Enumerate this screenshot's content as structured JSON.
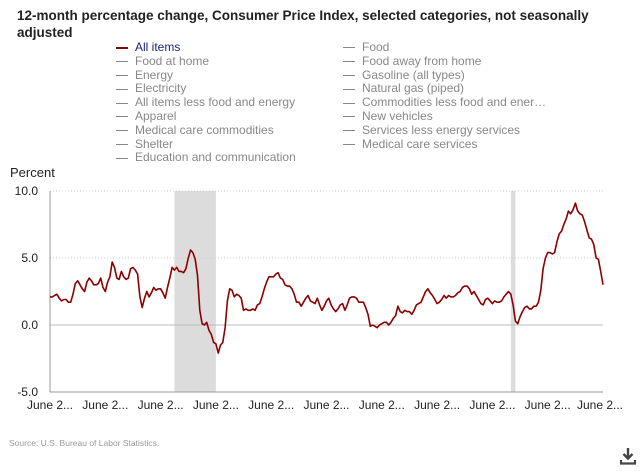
{
  "chart_data": {
    "type": "line",
    "title": "12-month percentage change, Consumer Price Index, selected categories, not seasonally adjusted",
    "ylabel": "Percent",
    "ylim": [
      -5,
      10
    ],
    "yticks": [
      "10.0",
      "5.0",
      "0.0",
      "-5.0"
    ],
    "xticks": [
      "June 2...",
      "June 2...",
      "June 2...",
      "June 2...",
      "June 2...",
      "June 2...",
      "June 2...",
      "June 2...",
      "June 2...",
      "June 2...",
      "June 2..."
    ],
    "grid": "horizontal dotted",
    "line_color": "#8b0000",
    "recession_color": "#dcdcdc",
    "recessions": [
      [
        "2007-12",
        "2009-06"
      ],
      [
        "2020-02",
        "2020-04"
      ]
    ],
    "legend": {
      "placement": "top",
      "items": [
        "All items",
        "Food",
        "Food at home",
        "Food away from home",
        "Energy",
        "Gasoline (all types)",
        "Electricity",
        "Natural gas (piped)",
        "All items less food and energy",
        "Commodities less food and ener…",
        "Apparel",
        "New vehicles",
        "Medical care commodities",
        "Services less energy services",
        "Shelter",
        "Medical care services",
        "Education and communication"
      ],
      "active": "All items"
    },
    "series": [
      {
        "name": "All items",
        "monthly_by_year": [
          {
            "year": 2003,
            "from_month": "June",
            "values": [
              2.1,
              2.1,
              2.2,
              2.3,
              2.0,
              1.8,
              1.9
            ]
          },
          {
            "year": 2004,
            "values": [
              1.9,
              1.7,
              1.7,
              2.3,
              3.1,
              3.3,
              3.0,
              2.7,
              2.5,
              3.2,
              3.5,
              3.3
            ]
          },
          {
            "year": 2005,
            "values": [
              3.0,
              3.0,
              3.1,
              3.5,
              2.8,
              2.5,
              3.2,
              3.6,
              4.7,
              4.3,
              3.5,
              3.4
            ]
          },
          {
            "year": 2006,
            "values": [
              4.0,
              3.6,
              3.4,
              3.5,
              4.2,
              4.3,
              4.1,
              3.8,
              2.1,
              1.3,
              2.0,
              2.5
            ]
          },
          {
            "year": 2007,
            "values": [
              2.1,
              2.4,
              2.8,
              2.6,
              2.7,
              2.7,
              2.4,
              2.0,
              2.8,
              3.5,
              4.3,
              4.1
            ]
          },
          {
            "year": 2008,
            "values": [
              4.3,
              4.0,
              4.0,
              3.9,
              4.2,
              5.0,
              5.6,
              5.4,
              4.9,
              3.7,
              1.1,
              0.1
            ]
          },
          {
            "year": 2009,
            "values": [
              0.0,
              0.2,
              -0.4,
              -0.7,
              -1.3,
              -1.4,
              -2.1,
              -1.5,
              -1.3,
              -0.2,
              1.8,
              2.7
            ]
          },
          {
            "year": 2010,
            "values": [
              2.6,
              2.1,
              2.3,
              2.2,
              2.0,
              1.1,
              1.2,
              1.1,
              1.1,
              1.2,
              1.1,
              1.5
            ]
          },
          {
            "year": 2011,
            "values": [
              1.6,
              2.1,
              2.7,
              3.2,
              3.6,
              3.6,
              3.6,
              3.8,
              3.9,
              3.5,
              3.4,
              3.0
            ]
          },
          {
            "year": 2012,
            "values": [
              2.9,
              2.9,
              2.7,
              2.3,
              1.7,
              1.7,
              1.4,
              1.7,
              2.0,
              2.2,
              1.8,
              1.7
            ]
          },
          {
            "year": 2013,
            "values": [
              1.6,
              2.0,
              1.5,
              1.1,
              1.4,
              1.8,
              2.0,
              1.5,
              1.2,
              1.0,
              1.2,
              1.5
            ]
          },
          {
            "year": 2014,
            "values": [
              1.6,
              1.1,
              1.5,
              2.0,
              2.1,
              2.1,
              2.0,
              1.7,
              1.7,
              1.7,
              1.3,
              0.8
            ]
          },
          {
            "year": 2015,
            "values": [
              -0.1,
              0.0,
              -0.1,
              -0.2,
              0.0,
              0.1,
              0.2,
              0.2,
              0.0,
              0.2,
              0.5,
              0.7
            ]
          },
          {
            "year": 2016,
            "values": [
              1.4,
              1.0,
              0.9,
              1.1,
              1.0,
              1.0,
              0.8,
              1.1,
              1.5,
              1.6,
              1.7,
              2.1
            ]
          },
          {
            "year": 2017,
            "values": [
              2.5,
              2.7,
              2.4,
              2.2,
              1.9,
              1.6,
              1.7,
              1.9,
              2.2,
              2.0,
              2.2,
              2.1
            ]
          },
          {
            "year": 2018,
            "values": [
              2.1,
              2.2,
              2.4,
              2.5,
              2.8,
              2.9,
              2.9,
              2.7,
              2.3,
              2.5,
              2.2,
              1.9
            ]
          },
          {
            "year": 2019,
            "values": [
              1.6,
              1.5,
              1.9,
              2.0,
              1.8,
              1.6,
              1.8,
              1.7,
              1.7,
              1.8,
              2.1,
              2.3
            ]
          },
          {
            "year": 2020,
            "values": [
              2.5,
              2.3,
              1.5,
              0.3,
              0.1,
              0.6,
              1.0,
              1.3,
              1.4,
              1.2,
              1.2,
              1.4
            ]
          },
          {
            "year": 2021,
            "values": [
              1.4,
              1.7,
              2.6,
              4.2,
              5.0,
              5.4,
              5.4,
              5.3,
              5.4,
              6.2,
              6.8,
              7.0
            ]
          },
          {
            "year": 2022,
            "values": [
              7.5,
              7.9,
              8.5,
              8.3,
              8.6,
              9.1,
              8.5,
              8.3,
              8.2,
              7.7,
              7.1,
              6.5
            ]
          },
          {
            "year": 2023,
            "values": [
              6.4,
              6.0,
              5.0,
              4.9,
              4.0,
              3.0
            ]
          }
        ]
      }
    ],
    "source": "Source: U.S. Bureau of Labor Statistics."
  },
  "download_icon": "download-icon"
}
